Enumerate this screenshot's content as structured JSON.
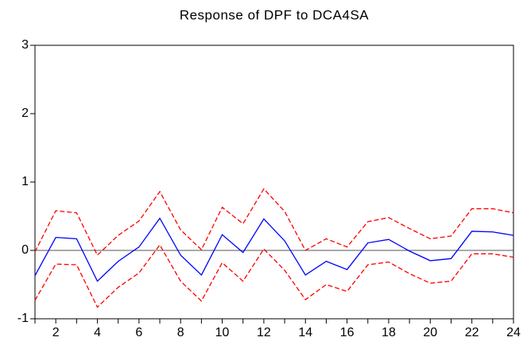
{
  "chart_data": {
    "type": "line",
    "title": "Response of DPF to DCA4SA",
    "x": [
      1,
      2,
      3,
      4,
      5,
      6,
      7,
      8,
      9,
      10,
      11,
      12,
      13,
      14,
      15,
      16,
      17,
      18,
      19,
      20,
      21,
      22,
      23,
      24
    ],
    "series": [
      {
        "color": "#0000ff",
        "style": "solid",
        "values": [
          -0.37,
          0.19,
          0.17,
          -0.45,
          -0.16,
          0.05,
          0.47,
          -0.07,
          -0.36,
          0.23,
          -0.03,
          0.46,
          0.14,
          -0.36,
          -0.16,
          -0.28,
          0.11,
          0.16,
          -0.01,
          -0.15,
          -0.12,
          0.28,
          0.27,
          0.22
        ]
      },
      {
        "color": "#ff0000",
        "style": "dashed",
        "values": [
          -0.02,
          0.58,
          0.55,
          -0.07,
          0.22,
          0.43,
          0.86,
          0.3,
          0.01,
          0.63,
          0.39,
          0.9,
          0.57,
          0.0,
          0.17,
          0.05,
          0.42,
          0.48,
          0.32,
          0.17,
          0.21,
          0.61,
          0.61,
          0.55
        ]
      },
      {
        "color": "#ff0000",
        "style": "dashed",
        "values": [
          -0.73,
          -0.2,
          -0.21,
          -0.83,
          -0.54,
          -0.33,
          0.08,
          -0.45,
          -0.74,
          -0.18,
          -0.45,
          0.02,
          -0.29,
          -0.72,
          -0.5,
          -0.6,
          -0.21,
          -0.17,
          -0.34,
          -0.48,
          -0.45,
          -0.05,
          -0.05,
          -0.1
        ]
      }
    ],
    "xlim": [
      1,
      24
    ],
    "xticks": [
      2,
      4,
      6,
      8,
      10,
      12,
      14,
      16,
      18,
      20,
      22,
      24
    ],
    "xminorticks": [
      1,
      3,
      5,
      7,
      9,
      11,
      13,
      15,
      17,
      19,
      21,
      23
    ],
    "ylim": [
      -1,
      3
    ],
    "yticks": [
      -1,
      0,
      1,
      2,
      3
    ],
    "zero_line": true
  }
}
